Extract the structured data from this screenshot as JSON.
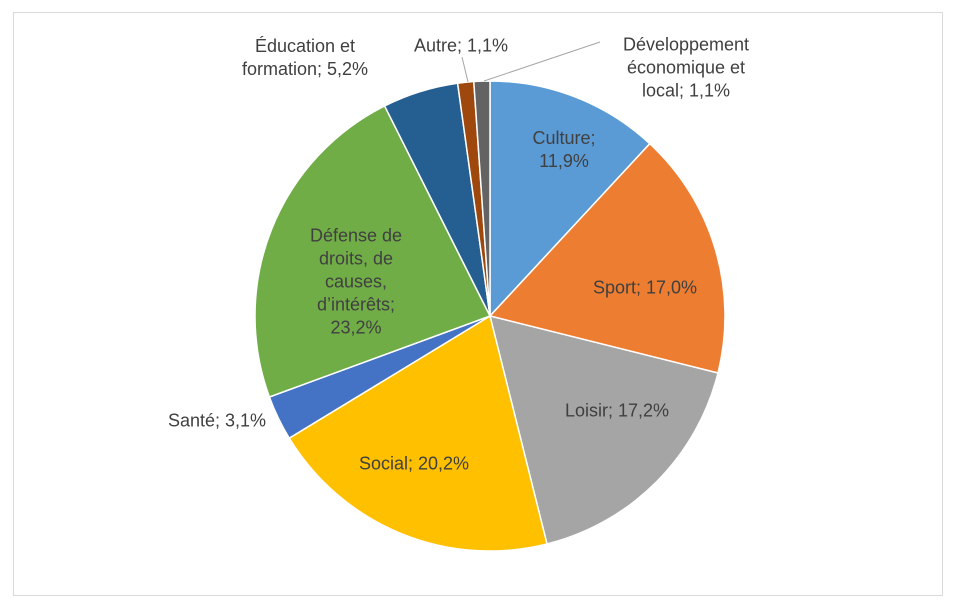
{
  "chart_data": {
    "type": "pie",
    "values": [
      11.9,
      17.0,
      17.2,
      20.2,
      3.1,
      23.2,
      5.2,
      1.1,
      1.1
    ],
    "value_labels": [
      "Culture; 11,9%",
      "Sport; 17,0%",
      "Loisir; 17,2%",
      "Social; 20,2%",
      "Santé; 3,1%",
      "Défense de droits, de causes, d’intérêts; 23,2%",
      "Éducation et formation; 5,2%",
      "Autre; 1,1%",
      "Développement économique et local; 1,1%"
    ],
    "colors": [
      "#5b9bd5",
      "#ed7d31",
      "#a5a5a5",
      "#ffc000",
      "#4472c4",
      "#70ad47",
      "#255e91",
      "#9e480e",
      "#636363"
    ]
  }
}
